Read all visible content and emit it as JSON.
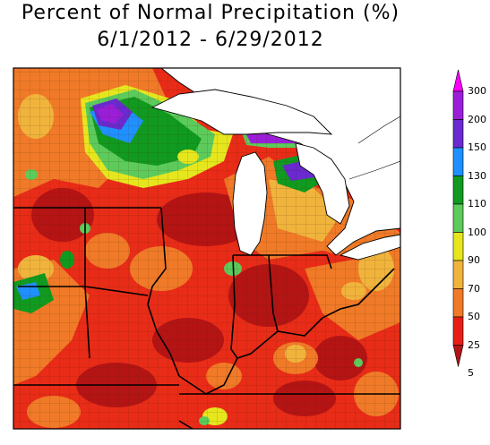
{
  "title": {
    "line1": "Percent of Normal Precipitation (%)",
    "line2": "6/1/2012 - 6/29/2012"
  },
  "legend": {
    "items": [
      {
        "label": "300",
        "color": "#ff00ff"
      },
      {
        "label": "200",
        "color": "#9a1ed8"
      },
      {
        "label": "150",
        "color": "#6a2ad0"
      },
      {
        "label": "130",
        "color": "#1e90ff"
      },
      {
        "label": "110",
        "color": "#109a20"
      },
      {
        "label": "100",
        "color": "#5ccb5c"
      },
      {
        "label": "90",
        "color": "#e6e61e"
      },
      {
        "label": "70",
        "color": "#f0b43c"
      },
      {
        "label": "50",
        "color": "#f07a28"
      },
      {
        "label": "25",
        "color": "#e81e14"
      },
      {
        "label": "5",
        "color": "#b41414"
      }
    ]
  },
  "map": {
    "water_color": "#ffffff",
    "base_color": "#e82c18"
  }
}
